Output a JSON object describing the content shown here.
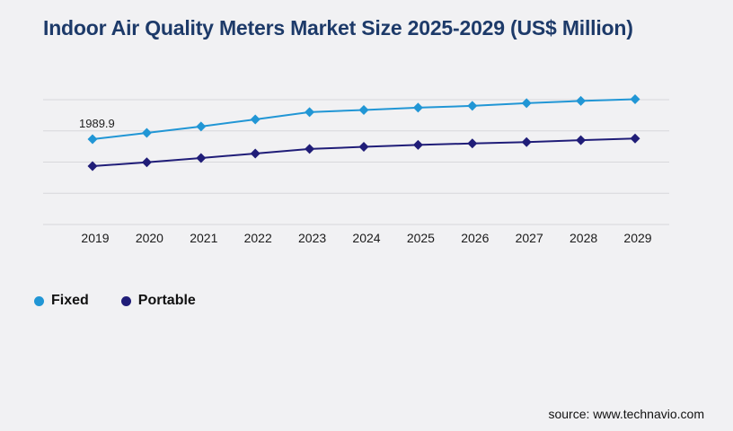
{
  "page": {
    "title": "Indoor Air Quality Meters Market Size 2025-2029 (US$ Million)",
    "source": "source: www.technavio.com"
  },
  "colors": {
    "background": "#f1f1f3",
    "title": "#1d3a69",
    "gridline": "#d8d8db",
    "axis_text": "#1a1a1a",
    "fixed_series": "#2196d5",
    "portable_series": "#201d78"
  },
  "legend": {
    "items": [
      {
        "label": "Fixed",
        "color": "#2196d5"
      },
      {
        "label": "Portable",
        "color": "#201d78"
      }
    ]
  },
  "chart_data": {
    "type": "line",
    "title": "Indoor Air Quality Meters Market Size 2025-2029 (US$ Million)",
    "x": [
      2019,
      2020,
      2021,
      2022,
      2023,
      2024,
      2025,
      2026,
      2027,
      2028,
      2029
    ],
    "series": [
      {
        "name": "Fixed",
        "color": "#2196d5",
        "values": [
          1989.9,
          2135,
          2285,
          2450,
          2620,
          2670,
          2725,
          2765,
          2830,
          2880,
          2920
        ]
      },
      {
        "name": "Portable",
        "color": "#201d78",
        "values": [
          1360,
          1450,
          1550,
          1655,
          1760,
          1810,
          1855,
          1890,
          1920,
          1965,
          2005
        ]
      }
    ],
    "xlabel": "",
    "ylabel": "",
    "ylim": [
      0,
      2910
    ],
    "y_axis_labels_visible": false,
    "grid": "horizontal",
    "gridline_count": 5,
    "marker": "diamond",
    "legend_position": "bottom-left",
    "data_labels": [
      {
        "series": "Fixed",
        "x": 2019,
        "text": "1989.9"
      }
    ]
  }
}
